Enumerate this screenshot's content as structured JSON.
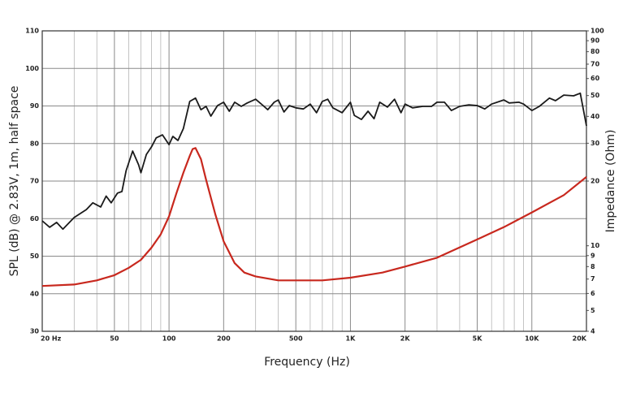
{
  "chart_data": {
    "type": "line",
    "xlabel": "Frequency (Hz)",
    "ylabel": "SPL (dB) @ 2.83V, 1m, half space",
    "y2label": "Impedance (Ohm)",
    "xscale": "log",
    "y2scale": "log",
    "grid": true,
    "xlim": [
      20,
      20000
    ],
    "ylim": [
      30,
      110
    ],
    "y2lim": [
      4,
      100
    ],
    "xticks": [
      {
        "value": 20,
        "label": "20 Hz"
      },
      50,
      100,
      200,
      500,
      {
        "value": 1000,
        "label": "1K"
      },
      {
        "value": 2000,
        "label": "2K"
      },
      {
        "value": 5000,
        "label": "5K"
      },
      {
        "value": 10000,
        "label": "10K"
      },
      {
        "value": 20000,
        "label": "20K"
      }
    ],
    "xminor": [
      30,
      40,
      60,
      70,
      80,
      90,
      300,
      400,
      600,
      700,
      800,
      900,
      3000,
      4000,
      6000,
      7000,
      8000,
      9000
    ],
    "yticks": [
      30,
      40,
      50,
      60,
      70,
      80,
      90,
      100,
      110
    ],
    "y2ticks": [
      4,
      5,
      6,
      7,
      8,
      9,
      10,
      20,
      30,
      40,
      50,
      60,
      70,
      80,
      90,
      100
    ],
    "series": [
      {
        "color": "#1a1a1a",
        "x": [
          20,
          22,
          24,
          26,
          30,
          35,
          38,
          42,
          45,
          48,
          52,
          55,
          58,
          63,
          68,
          70,
          75,
          80,
          85,
          92,
          100,
          105,
          112,
          120,
          130,
          140,
          150,
          160,
          170,
          185,
          200,
          215,
          230,
          250,
          270,
          300,
          330,
          350,
          380,
          400,
          430,
          460,
          500,
          550,
          600,
          650,
          700,
          750,
          800,
          900,
          1000,
          1050,
          1150,
          1250,
          1350,
          1450,
          1600,
          1750,
          1900,
          2000,
          2200,
          2500,
          2800,
          3000,
          3300,
          3600,
          4000,
          4500,
          5000,
          5500,
          6000,
          7000,
          7500,
          8500,
          9000,
          10000,
          11000,
          12500,
          13500,
          15000,
          17000,
          18500,
          20000
        ],
        "values": [
          59.4,
          57.7,
          59,
          57.2,
          60.3,
          62.4,
          64.2,
          63.1,
          66,
          64.2,
          66.8,
          67.2,
          72.8,
          78,
          74.3,
          72.2,
          77.1,
          79.1,
          81.5,
          82.3,
          79.7,
          81.9,
          80.8,
          84,
          91.2,
          92.1,
          89,
          89.9,
          87.3,
          90.1,
          91,
          88.6,
          91,
          89.9,
          90.8,
          91.8,
          90.1,
          89,
          91,
          91.6,
          88.4,
          90.1,
          89.5,
          89.2,
          90.5,
          88.2,
          91.2,
          91.8,
          89.5,
          88.2,
          91,
          87.5,
          86.4,
          88.6,
          86.6,
          91,
          89.7,
          91.8,
          88.2,
          90.5,
          89.5,
          89.9,
          89.9,
          91,
          91,
          88.8,
          89.9,
          90.3,
          90.1,
          89.2,
          90.5,
          91.6,
          90.8,
          91,
          90.5,
          88.8,
          89.9,
          92.1,
          91.4,
          92.9,
          92.7,
          93.4,
          84.7
        ]
      },
      {
        "color": "#c8281e",
        "axis": "y2",
        "x": [
          20,
          30,
          40,
          50,
          60,
          70,
          80,
          90,
          100,
          110,
          120,
          130,
          135,
          140,
          150,
          160,
          180,
          200,
          230,
          260,
          300,
          400,
          500,
          700,
          1000,
          1500,
          2000,
          3000,
          5000,
          7000,
          10000,
          15000,
          20000
        ],
        "values": [
          6.5,
          6.6,
          6.9,
          7.3,
          7.9,
          8.6,
          9.8,
          11.3,
          13.7,
          17.6,
          21.9,
          26.2,
          28.2,
          28.5,
          25.3,
          20.3,
          14,
          10.5,
          8.3,
          7.5,
          7.2,
          6.9,
          6.9,
          6.9,
          7.1,
          7.5,
          8,
          8.8,
          10.7,
          12.2,
          14.3,
          17.2,
          20.9
        ]
      }
    ]
  }
}
